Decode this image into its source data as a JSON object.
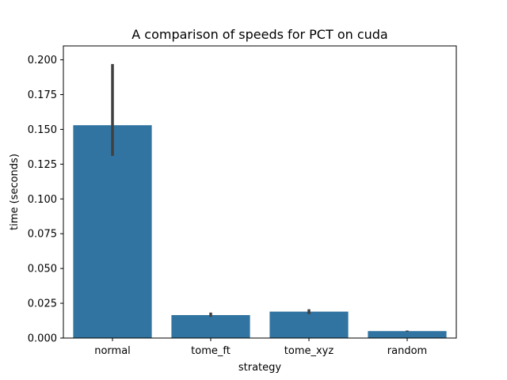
{
  "chart_data": {
    "type": "bar",
    "title": "A comparison of speeds for PCT on cuda",
    "xlabel": "strategy",
    "ylabel": "time (seconds)",
    "categories": [
      "normal",
      "tome_ft",
      "tome_xyz",
      "random"
    ],
    "values": [
      0.153,
      0.0165,
      0.019,
      0.005
    ],
    "error_low": [
      0.131,
      0.0153,
      0.0172,
      0.0046
    ],
    "error_high": [
      0.197,
      0.0183,
      0.0207,
      0.0054
    ],
    "ylim": [
      0,
      0.21
    ],
    "yticks": [
      0.0,
      0.025,
      0.05,
      0.075,
      0.1,
      0.125,
      0.15,
      0.175,
      0.2
    ],
    "ytick_labels": [
      "0.000",
      "0.025",
      "0.050",
      "0.075",
      "0.100",
      "0.125",
      "0.150",
      "0.175",
      "0.200"
    ],
    "grid": false,
    "bar_color": "#3274a1",
    "error_color": "#404040"
  }
}
